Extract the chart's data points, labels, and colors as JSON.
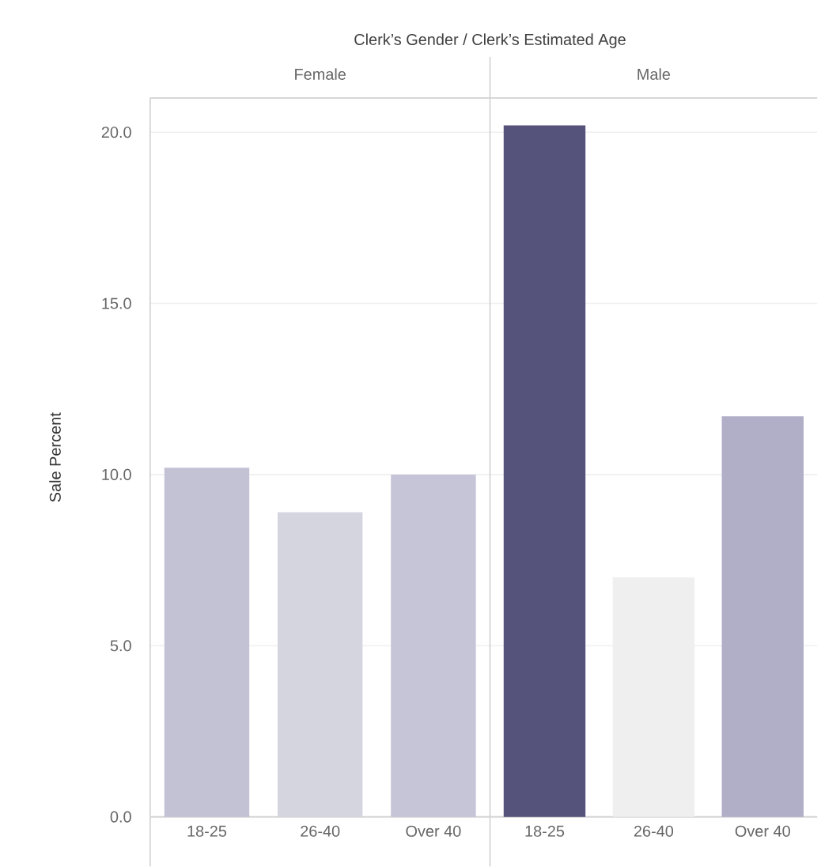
{
  "chart_data": [
    {
      "type": "bar",
      "title": "Female",
      "xlabel": "Clerk’s Gender / Clerk’s Estimated Age",
      "ylabel": "Sale Percent",
      "categories": [
        "18-25",
        "26-40",
        "Over 40"
      ],
      "values": [
        10.2,
        8.9,
        10.0
      ],
      "colors": [
        "#c3c2d5",
        "#d5d5e0",
        "#c6c5d7"
      ],
      "ylim": [
        0,
        21
      ],
      "yticks": [
        {
          "value": 0,
          "label": "0.0"
        },
        {
          "value": 5,
          "label": "5.0"
        },
        {
          "value": 10,
          "label": "10.0"
        },
        {
          "value": 15,
          "label": "15.0"
        },
        {
          "value": 20,
          "label": "20.0"
        }
      ],
      "grid": "y"
    },
    {
      "type": "bar",
      "title": "Male",
      "categories": [
        "18-25",
        "26-40",
        "Over 40"
      ],
      "values": [
        20.2,
        7.0,
        11.7
      ],
      "colors": [
        "#55537b",
        "#efefef",
        "#b0afc7"
      ],
      "ylim": [
        0,
        21
      ],
      "yticks": [
        {
          "value": 0,
          "label": null
        },
        {
          "value": 5,
          "label": null
        },
        {
          "value": 10,
          "label": null
        },
        {
          "value": 15,
          "label": null
        },
        {
          "value": 20,
          "label": null
        }
      ],
      "grid": "y",
      "tick_labels": "x"
    }
  ]
}
